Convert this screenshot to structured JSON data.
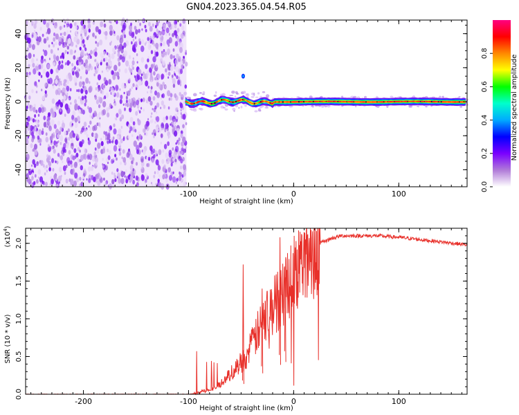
{
  "figure_title": "GN04.2023.365.04.54.R05",
  "chart_data": [
    {
      "type": "heatmap",
      "panel": "spectrogram",
      "xlabel": "Height of straight line (km)",
      "ylabel": "Frequency (Hz)",
      "xlim": [
        -255,
        165
      ],
      "ylim": [
        -50,
        48
      ],
      "x_ticks": [
        -200,
        -100,
        0,
        100
      ],
      "y_ticks": [
        -40,
        -20,
        0,
        20,
        40
      ],
      "noise_region_x": [
        -255,
        -102
      ],
      "signal_band_x": [
        -103,
        165
      ],
      "signal_band_center_hz": 0,
      "colorbar": {
        "label": "Normalized spectral amplitude",
        "range": [
          0.0,
          1.0
        ],
        "ticks": [
          "0.0",
          "0.2",
          "0.4",
          "0.6",
          "0.8"
        ],
        "colormap": [
          "#ffffff",
          "#b07ad8",
          "#7a00ff",
          "#0000ff",
          "#00aaff",
          "#00ffcc",
          "#00ff00",
          "#ffff00",
          "#ff8800",
          "#ff0000",
          "#ff0080"
        ]
      }
    },
    {
      "type": "line",
      "panel": "snr",
      "xlabel": "Height of straight line (km)",
      "ylabel": "SNR (10 * v/v)",
      "y_multiplier": "(x10",
      "y_multiplier_exp": "4",
      "y_multiplier_close": ")",
      "xlim": [
        -255,
        165
      ],
      "ylim": [
        0,
        2.2
      ],
      "x_ticks": [
        -200,
        -100,
        0,
        100
      ],
      "y_ticks": [
        "0.0",
        "0.5",
        "1.0",
        "1.5",
        "2.0"
      ],
      "line_color": "#e8302a",
      "series": [
        {
          "x": [
            -255,
            -220,
            -180,
            -140,
            -100,
            -92,
            -85,
            -75,
            -65,
            -55,
            -45,
            -35,
            -25,
            -15,
            -5,
            5,
            15,
            25,
            35,
            45,
            60,
            80,
            100,
            120,
            140,
            165
          ],
          "values": [
            0.0,
            0.0,
            0.0,
            0.0,
            0.0,
            0.01,
            0.05,
            0.08,
            0.2,
            0.35,
            0.5,
            0.8,
            1.05,
            1.25,
            1.5,
            1.7,
            1.9,
            2.0,
            2.06,
            2.1,
            2.1,
            2.1,
            2.08,
            2.05,
            2.02,
            1.98
          ]
        }
      ]
    }
  ]
}
